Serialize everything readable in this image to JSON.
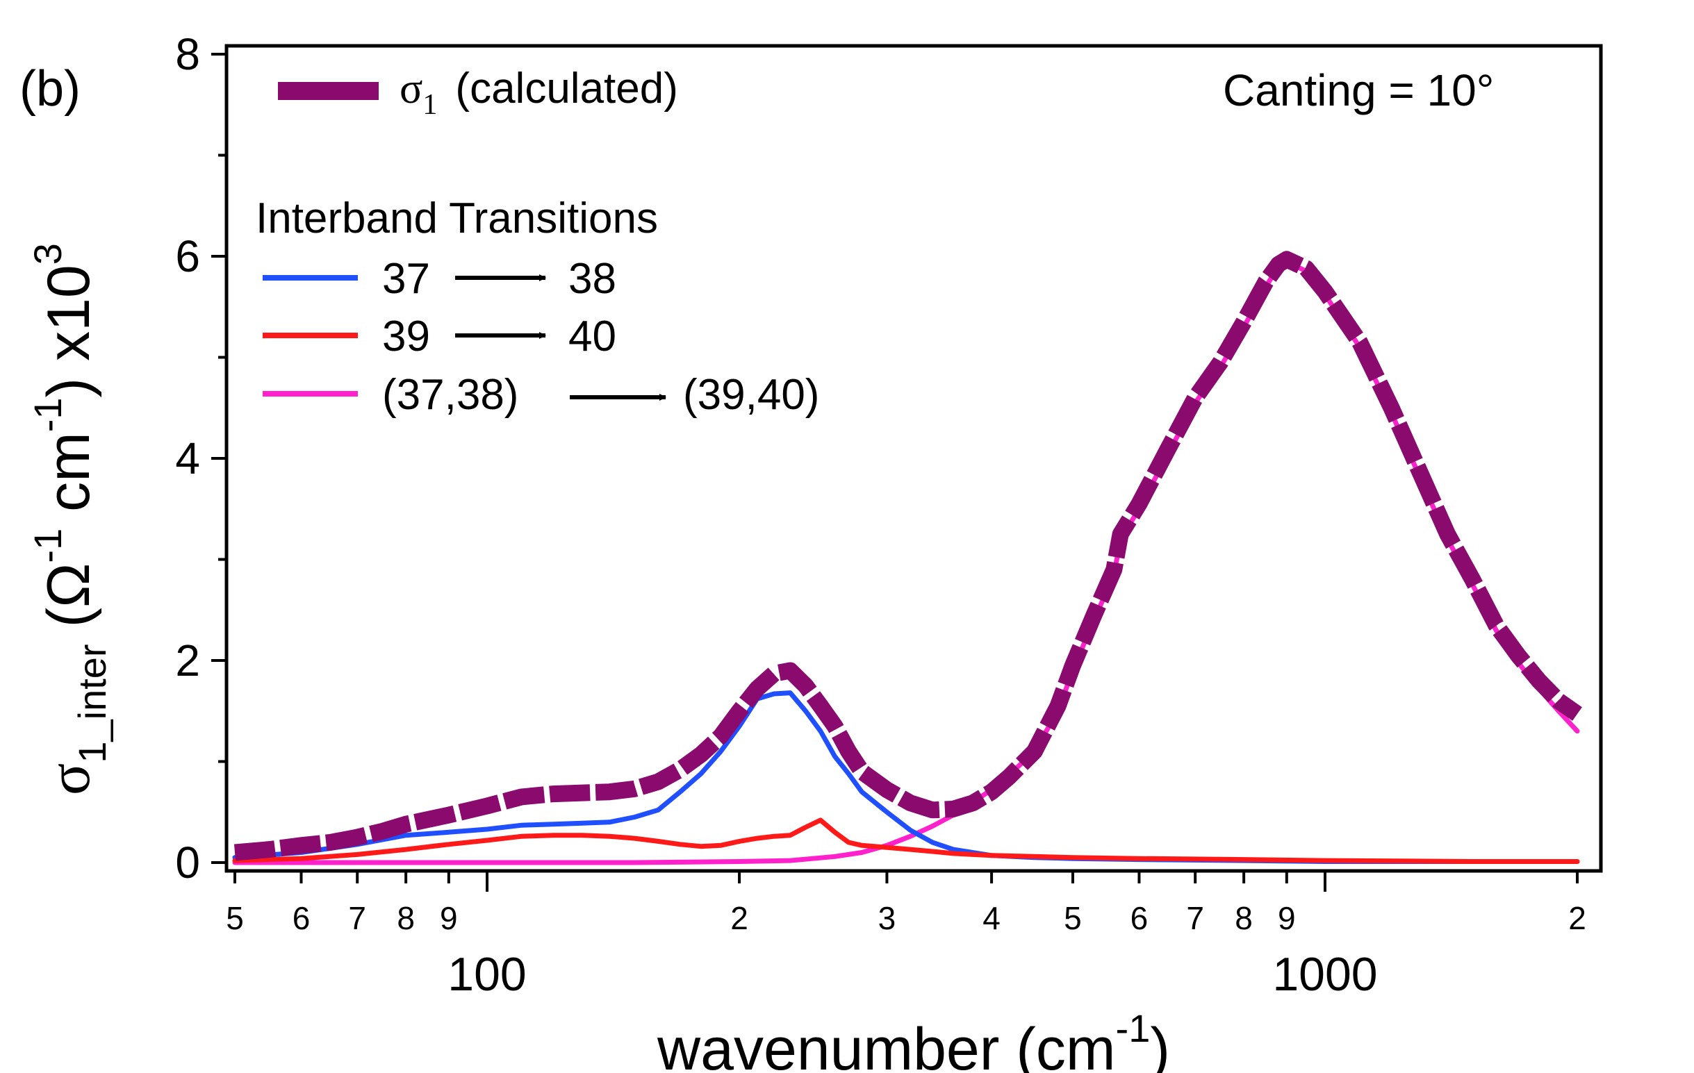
{
  "chart_data": {
    "type": "line",
    "panel_label": "(b)",
    "annotation": "Canting = 10°",
    "xlabel": {
      "main": "wavenumber (cm",
      "sup": "-1",
      "close": ")"
    },
    "ylabel": {
      "sigma": "σ",
      "sub": "1_inter",
      "open": " (Ω",
      "sup1": "-1",
      "mid": " cm",
      "sup2": "-1",
      "close": ") x10",
      "sup3": "3"
    },
    "x_scale": "log",
    "xlim": [
      50,
      2000
    ],
    "ylim": [
      0,
      8
    ],
    "y_ticks": [
      {
        "value": 0,
        "label": "0"
      },
      {
        "value": 2,
        "label": "2"
      },
      {
        "value": 4,
        "label": "4"
      },
      {
        "value": 6,
        "label": "6"
      },
      {
        "value": 8,
        "label": "8"
      }
    ],
    "x_tick_labels": [
      {
        "value": 50,
        "label": "5"
      },
      {
        "value": 60,
        "label": "6"
      },
      {
        "value": 70,
        "label": "7"
      },
      {
        "value": 80,
        "label": "8"
      },
      {
        "value": 90,
        "label": "9"
      },
      {
        "value": 200,
        "label": "2"
      },
      {
        "value": 300,
        "label": "3"
      },
      {
        "value": 400,
        "label": "4"
      },
      {
        "value": 500,
        "label": "5"
      },
      {
        "value": 600,
        "label": "6"
      },
      {
        "value": 700,
        "label": "7"
      },
      {
        "value": 800,
        "label": "8"
      },
      {
        "value": 900,
        "label": "9"
      },
      {
        "value": 2000,
        "label": "2"
      }
    ],
    "x_decade_labels": [
      {
        "value": 100,
        "label": "100"
      },
      {
        "value": 1000,
        "label": "1000"
      }
    ],
    "legend": {
      "heading": "Interband Transitions",
      "entries": [
        {
          "series": 0,
          "symbol": "σ",
          "sub": "1",
          "text": "(calculated)"
        },
        {
          "series": 1,
          "from": "37",
          "to": "38"
        },
        {
          "series": 2,
          "from": "39",
          "to": "40"
        },
        {
          "series": 3,
          "from": "(37,38)",
          "to": "(39,40)"
        }
      ]
    },
    "series": [
      {
        "name": "σ1 (calculated)",
        "color": "#8b0a6e",
        "style": "dashed-thick",
        "points": [
          [
            50,
            0.1
          ],
          [
            55,
            0.13
          ],
          [
            60,
            0.17
          ],
          [
            65,
            0.2
          ],
          [
            70,
            0.25
          ],
          [
            75,
            0.31
          ],
          [
            80,
            0.38
          ],
          [
            90,
            0.47
          ],
          [
            100,
            0.56
          ],
          [
            110,
            0.65
          ],
          [
            120,
            0.68
          ],
          [
            130,
            0.69
          ],
          [
            140,
            0.7
          ],
          [
            150,
            0.73
          ],
          [
            160,
            0.8
          ],
          [
            170,
            0.92
          ],
          [
            180,
            1.07
          ],
          [
            190,
            1.25
          ],
          [
            200,
            1.5
          ],
          [
            210,
            1.72
          ],
          [
            220,
            1.87
          ],
          [
            230,
            1.9
          ],
          [
            240,
            1.75
          ],
          [
            250,
            1.55
          ],
          [
            260,
            1.35
          ],
          [
            270,
            1.1
          ],
          [
            280,
            0.9
          ],
          [
            300,
            0.72
          ],
          [
            320,
            0.59
          ],
          [
            340,
            0.52
          ],
          [
            360,
            0.53
          ],
          [
            380,
            0.59
          ],
          [
            400,
            0.7
          ],
          [
            420,
            0.85
          ],
          [
            450,
            1.1
          ],
          [
            480,
            1.55
          ],
          [
            500,
            1.95
          ],
          [
            530,
            2.45
          ],
          [
            560,
            2.9
          ],
          [
            570,
            3.25
          ],
          [
            600,
            3.55
          ],
          [
            650,
            4.1
          ],
          [
            700,
            4.6
          ],
          [
            750,
            4.95
          ],
          [
            800,
            5.35
          ],
          [
            850,
            5.75
          ],
          [
            880,
            5.92
          ],
          [
            900,
            5.97
          ],
          [
            950,
            5.88
          ],
          [
            1000,
            5.65
          ],
          [
            1100,
            5.15
          ],
          [
            1200,
            4.5
          ],
          [
            1300,
            3.85
          ],
          [
            1400,
            3.25
          ],
          [
            1500,
            2.8
          ],
          [
            1600,
            2.35
          ],
          [
            1700,
            2.05
          ],
          [
            1800,
            1.8
          ],
          [
            1900,
            1.6
          ],
          [
            2000,
            1.47
          ]
        ]
      },
      {
        "name": "37 → 38",
        "color": "#1f4fff",
        "style": "solid",
        "points": [
          [
            50,
            0.05
          ],
          [
            60,
            0.1
          ],
          [
            70,
            0.18
          ],
          [
            80,
            0.27
          ],
          [
            90,
            0.3
          ],
          [
            100,
            0.33
          ],
          [
            110,
            0.37
          ],
          [
            120,
            0.38
          ],
          [
            130,
            0.39
          ],
          [
            140,
            0.4
          ],
          [
            150,
            0.45
          ],
          [
            160,
            0.52
          ],
          [
            170,
            0.7
          ],
          [
            180,
            0.88
          ],
          [
            190,
            1.1
          ],
          [
            200,
            1.35
          ],
          [
            210,
            1.62
          ],
          [
            220,
            1.67
          ],
          [
            230,
            1.68
          ],
          [
            240,
            1.5
          ],
          [
            250,
            1.3
          ],
          [
            260,
            1.05
          ],
          [
            270,
            0.88
          ],
          [
            280,
            0.7
          ],
          [
            300,
            0.5
          ],
          [
            320,
            0.32
          ],
          [
            340,
            0.2
          ],
          [
            360,
            0.13
          ],
          [
            400,
            0.07
          ],
          [
            450,
            0.05
          ],
          [
            500,
            0.04
          ],
          [
            600,
            0.03
          ],
          [
            800,
            0.02
          ],
          [
            1000,
            0.01
          ],
          [
            2000,
            0.01
          ]
        ]
      },
      {
        "name": "39 → 40",
        "color": "#ff1a1a",
        "style": "solid",
        "points": [
          [
            50,
            0.02
          ],
          [
            60,
            0.04
          ],
          [
            70,
            0.08
          ],
          [
            80,
            0.13
          ],
          [
            90,
            0.18
          ],
          [
            100,
            0.22
          ],
          [
            110,
            0.26
          ],
          [
            120,
            0.27
          ],
          [
            130,
            0.27
          ],
          [
            140,
            0.26
          ],
          [
            150,
            0.24
          ],
          [
            160,
            0.21
          ],
          [
            170,
            0.18
          ],
          [
            180,
            0.16
          ],
          [
            190,
            0.17
          ],
          [
            200,
            0.21
          ],
          [
            210,
            0.24
          ],
          [
            220,
            0.26
          ],
          [
            230,
            0.27
          ],
          [
            240,
            0.35
          ],
          [
            250,
            0.42
          ],
          [
            260,
            0.3
          ],
          [
            270,
            0.2
          ],
          [
            280,
            0.17
          ],
          [
            300,
            0.15
          ],
          [
            320,
            0.13
          ],
          [
            340,
            0.11
          ],
          [
            360,
            0.09
          ],
          [
            400,
            0.07
          ],
          [
            450,
            0.06
          ],
          [
            500,
            0.05
          ],
          [
            600,
            0.04
          ],
          [
            800,
            0.03
          ],
          [
            1000,
            0.02
          ],
          [
            1500,
            0.01
          ],
          [
            2000,
            0.01
          ]
        ]
      },
      {
        "name": "(37,38) → (39,40)",
        "color": "#ff22cc",
        "style": "solid",
        "points": [
          [
            50,
            0.0
          ],
          [
            100,
            0.0
          ],
          [
            150,
            0.0
          ],
          [
            200,
            0.01
          ],
          [
            230,
            0.02
          ],
          [
            260,
            0.06
          ],
          [
            280,
            0.1
          ],
          [
            300,
            0.17
          ],
          [
            320,
            0.26
          ],
          [
            340,
            0.36
          ],
          [
            360,
            0.47
          ],
          [
            380,
            0.6
          ],
          [
            400,
            0.72
          ],
          [
            420,
            0.87
          ],
          [
            450,
            1.1
          ],
          [
            480,
            1.5
          ],
          [
            500,
            1.9
          ],
          [
            530,
            2.4
          ],
          [
            560,
            2.85
          ],
          [
            570,
            3.2
          ],
          [
            600,
            3.5
          ],
          [
            650,
            4.05
          ],
          [
            700,
            4.55
          ],
          [
            750,
            4.9
          ],
          [
            800,
            5.3
          ],
          [
            850,
            5.7
          ],
          [
            880,
            5.9
          ],
          [
            900,
            5.95
          ],
          [
            950,
            5.85
          ],
          [
            1000,
            5.62
          ],
          [
            1100,
            5.1
          ],
          [
            1200,
            4.45
          ],
          [
            1300,
            3.8
          ],
          [
            1400,
            3.2
          ],
          [
            1500,
            2.75
          ],
          [
            1600,
            2.3
          ],
          [
            1700,
            1.98
          ],
          [
            1800,
            1.72
          ],
          [
            1900,
            1.5
          ],
          [
            2000,
            1.3
          ]
        ]
      }
    ]
  }
}
